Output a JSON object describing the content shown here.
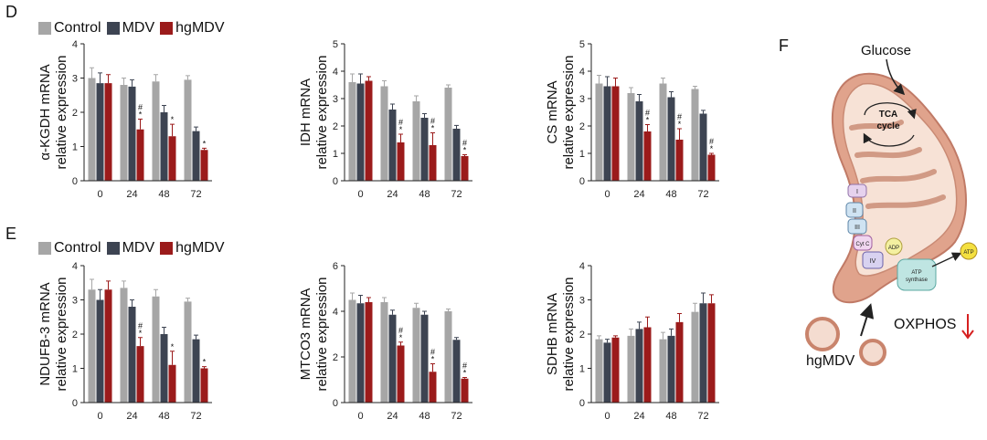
{
  "panels": {
    "d": "D",
    "e": "E",
    "f": "F"
  },
  "legend": [
    {
      "label": "Control",
      "color": "#a6a6a6"
    },
    {
      "label": "MDV",
      "color": "#3d4452"
    },
    {
      "label": "hgMDV",
      "color": "#9b1b1b"
    }
  ],
  "chart_data": [
    {
      "type": "bar",
      "id": "akgdh",
      "ylabel": [
        "α-KGDH mRNA",
        "relative expression"
      ],
      "categories": [
        "0",
        "24",
        "48",
        "72"
      ],
      "ylim": [
        0,
        4
      ],
      "yticks": [
        "0",
        "1",
        "2",
        "3",
        "4"
      ],
      "series": [
        {
          "name": "Control",
          "values": [
            3.0,
            2.8,
            2.9,
            2.95
          ],
          "errors": [
            0.3,
            0.2,
            0.2,
            0.12
          ]
        },
        {
          "name": "MDV",
          "values": [
            2.85,
            2.75,
            2.0,
            1.45
          ],
          "errors": [
            0.3,
            0.2,
            0.2,
            0.12
          ]
        },
        {
          "name": "hgMDV",
          "values": [
            2.85,
            1.5,
            1.3,
            0.9
          ],
          "errors": [
            0.25,
            0.3,
            0.35,
            0.05
          ]
        }
      ],
      "marks": [
        "",
        "#\n*",
        "*",
        "*"
      ]
    },
    {
      "type": "bar",
      "id": "idh",
      "ylabel": [
        "IDH mRNA",
        "relative expression"
      ],
      "categories": [
        "0",
        "24",
        "48",
        "72"
      ],
      "ylim": [
        0,
        5
      ],
      "yticks": [
        "0",
        "1",
        "2",
        "3",
        "4",
        "5"
      ],
      "series": [
        {
          "name": "Control",
          "values": [
            3.6,
            3.45,
            2.9,
            3.4
          ],
          "errors": [
            0.3,
            0.2,
            0.2,
            0.1
          ]
        },
        {
          "name": "MDV",
          "values": [
            3.55,
            2.6,
            2.3,
            1.9
          ],
          "errors": [
            0.35,
            0.2,
            0.15,
            0.12
          ]
        },
        {
          "name": "hgMDV",
          "values": [
            3.65,
            1.4,
            1.3,
            0.9
          ],
          "errors": [
            0.15,
            0.3,
            0.45,
            0.05
          ]
        }
      ],
      "marks": [
        "",
        "#\n*",
        "#\n*",
        "#\n*"
      ]
    },
    {
      "type": "bar",
      "id": "cs",
      "ylabel": [
        "CS mRNA",
        "relative expression"
      ],
      "categories": [
        "0",
        "24",
        "48",
        "72"
      ],
      "ylim": [
        0,
        5
      ],
      "yticks": [
        "0",
        "1",
        "2",
        "3",
        "4",
        "5"
      ],
      "series": [
        {
          "name": "Control",
          "values": [
            3.55,
            3.2,
            3.55,
            3.35
          ],
          "errors": [
            0.3,
            0.2,
            0.2,
            0.1
          ]
        },
        {
          "name": "MDV",
          "values": [
            3.45,
            2.9,
            3.05,
            2.45
          ],
          "errors": [
            0.35,
            0.25,
            0.2,
            0.12
          ]
        },
        {
          "name": "hgMDV",
          "values": [
            3.45,
            1.8,
            1.5,
            0.95
          ],
          "errors": [
            0.3,
            0.25,
            0.4,
            0.05
          ]
        }
      ],
      "marks": [
        "",
        "#\n*",
        "#\n*",
        "#\n*"
      ]
    },
    {
      "type": "bar",
      "id": "ndufb3",
      "ylabel": [
        "NDUFB-3 mRNA",
        "relative expression"
      ],
      "categories": [
        "0",
        "24",
        "48",
        "72"
      ],
      "ylim": [
        0,
        4
      ],
      "yticks": [
        "0",
        "1",
        "2",
        "3",
        "4"
      ],
      "series": [
        {
          "name": "Control",
          "values": [
            3.3,
            3.35,
            3.1,
            2.95
          ],
          "errors": [
            0.3,
            0.2,
            0.2,
            0.1
          ]
        },
        {
          "name": "MDV",
          "values": [
            3.0,
            2.8,
            2.0,
            1.85
          ],
          "errors": [
            0.3,
            0.2,
            0.2,
            0.12
          ]
        },
        {
          "name": "hgMDV",
          "values": [
            3.3,
            1.65,
            1.1,
            1.0
          ],
          "errors": [
            0.25,
            0.25,
            0.4,
            0.05
          ]
        }
      ],
      "marks": [
        "",
        "#\n*",
        "*",
        "*"
      ]
    },
    {
      "type": "bar",
      "id": "mtco3",
      "ylabel": [
        "MTCO3 mRNA",
        "relative expression"
      ],
      "categories": [
        "0",
        "24",
        "48",
        "72"
      ],
      "ylim": [
        0,
        6
      ],
      "yticks": [
        "0",
        "2",
        "4",
        "6"
      ],
      "series": [
        {
          "name": "Control",
          "values": [
            4.5,
            4.4,
            4.15,
            4.0
          ],
          "errors": [
            0.3,
            0.2,
            0.2,
            0.1
          ]
        },
        {
          "name": "MDV",
          "values": [
            4.35,
            3.85,
            3.85,
            2.75
          ],
          "errors": [
            0.35,
            0.2,
            0.15,
            0.1
          ]
        },
        {
          "name": "hgMDV",
          "values": [
            4.4,
            2.5,
            1.35,
            1.05
          ],
          "errors": [
            0.2,
            0.15,
            0.35,
            0.05
          ]
        }
      ],
      "marks": [
        "",
        "#\n*",
        "#\n*",
        "#\n*"
      ]
    },
    {
      "type": "bar",
      "id": "sdhb",
      "ylabel": [
        "SDHB mRNA",
        "relative expression"
      ],
      "categories": [
        "0",
        "24",
        "48",
        "72"
      ],
      "ylim": [
        0,
        4
      ],
      "yticks": [
        "0",
        "1",
        "2",
        "3",
        "4"
      ],
      "series": [
        {
          "name": "Control",
          "values": [
            1.85,
            1.95,
            1.85,
            2.65
          ],
          "errors": [
            0.1,
            0.2,
            0.2,
            0.25
          ]
        },
        {
          "name": "MDV",
          "values": [
            1.75,
            2.15,
            1.95,
            2.9
          ],
          "errors": [
            0.1,
            0.2,
            0.2,
            0.3
          ]
        },
        {
          "name": "hgMDV",
          "values": [
            1.9,
            2.2,
            2.35,
            2.9
          ],
          "errors": [
            0.05,
            0.3,
            0.25,
            0.25
          ]
        }
      ],
      "marks": [
        "",
        "",
        "",
        ""
      ]
    }
  ],
  "diagram": {
    "glucose": "Glucose",
    "tca_line1": "TCA",
    "tca_line2": "cycle",
    "complexes": [
      "I",
      "II",
      "III",
      "Cyt C",
      "IV"
    ],
    "adp": "ADP",
    "atp": "ATP",
    "synthase_line1": "ATP",
    "synthase_line2": "synthase",
    "hgmdv": "hgMDV",
    "oxphos": "OXPHOS",
    "arrow_color": "#d62020"
  }
}
